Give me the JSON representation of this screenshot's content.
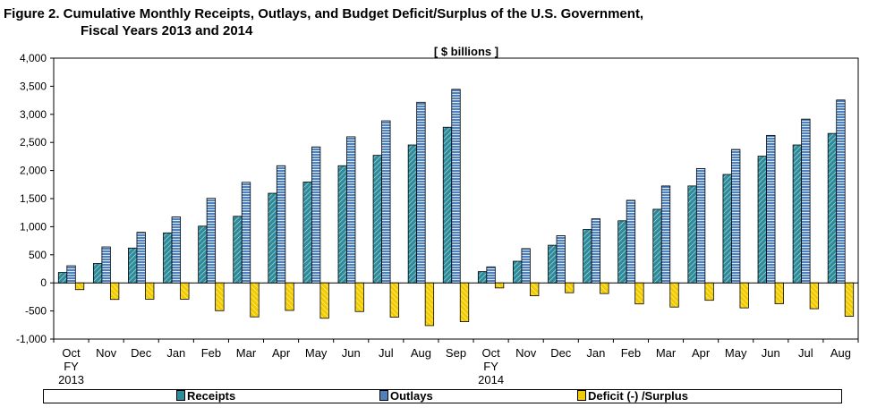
{
  "chart_data": {
    "type": "bar",
    "title_line1": "Figure 2.  Cumulative Monthly Receipts, Outlays, and Budget Deficit/Surplus of the U.S. Government,",
    "title_line2": "Fiscal Years 2013 and 2014",
    "unit_label": "[ $ billions  ]",
    "ylim": [
      -1000,
      4000
    ],
    "yticks": [
      "4,000",
      "3,500",
      "3,000",
      "2,500",
      "2,000",
      "1,500",
      "1,000",
      "500",
      "0",
      "-500",
      "-1,000"
    ],
    "ytick_values": [
      4000,
      3500,
      3000,
      2500,
      2000,
      1500,
      1000,
      500,
      0,
      -500,
      -1000
    ],
    "categories": [
      "Oct",
      "Nov",
      "Dec",
      "Jan",
      "Feb",
      "Mar",
      "Apr",
      "May",
      "Jun",
      "Jul",
      "Aug",
      "Sep",
      "Oct",
      "Nov",
      "Dec",
      "Jan",
      "Feb",
      "Mar",
      "Apr",
      "May",
      "Jun",
      "Jul",
      "Aug"
    ],
    "fiscal_year_labels": [
      {
        "index": 0,
        "line1": "FY",
        "line2": "2013"
      },
      {
        "index": 12,
        "line1": "FY",
        "line2": "2014"
      }
    ],
    "series": [
      {
        "name": "Receipts",
        "color": "#2e8b9a",
        "values": [
          185,
          345,
          620,
          890,
          1010,
          1185,
          1595,
          1795,
          2085,
          2270,
          2455,
          2770,
          200,
          385,
          670,
          950,
          1105,
          1310,
          1725,
          1930,
          2255,
          2455,
          2660
        ]
      },
      {
        "name": "Outlays",
        "color": "#4f81bd",
        "values": [
          305,
          640,
          900,
          1175,
          1505,
          1790,
          2085,
          2420,
          2600,
          2885,
          3215,
          3445,
          285,
          610,
          840,
          1140,
          1470,
          1725,
          2035,
          2375,
          2625,
          2915,
          3255
        ]
      },
      {
        "name": "Deficit (-) /Surplus",
        "color": "#f2cc00",
        "values": [
          -120,
          -295,
          -290,
          -290,
          -495,
          -605,
          -490,
          -630,
          -510,
          -610,
          -760,
          -690,
          -90,
          -230,
          -175,
          -190,
          -375,
          -430,
          -310,
          -445,
          -370,
          -460,
          -595
        ]
      }
    ],
    "legend": [
      "Receipts",
      "Outlays",
      "Deficit (-) /Surplus"
    ],
    "legend_position": "bottom",
    "grid": false
  }
}
